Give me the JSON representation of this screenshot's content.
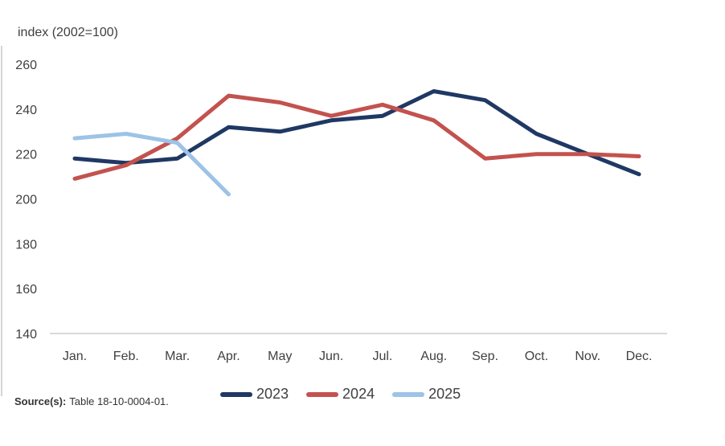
{
  "chart": {
    "source_label": "Source(s):",
    "source_text": "Table 18-10-0004-01.",
    "background": "#ffffff",
    "text_color": "#404040",
    "grid_color": "#d9d9d9"
  },
  "chart_data": {
    "type": "line",
    "title": "index (2002=100)",
    "categories": [
      "Jan.",
      "Feb.",
      "Mar.",
      "Apr.",
      "May",
      "Jun.",
      "Jul.",
      "Aug.",
      "Sep.",
      "Oct.",
      "Nov.",
      "Dec."
    ],
    "series": [
      {
        "name": "2023",
        "color": "#1f3864",
        "values": [
          218,
          216,
          218,
          232,
          230,
          235,
          237,
          248,
          244,
          229,
          220,
          211
        ]
      },
      {
        "name": "2024",
        "color": "#c3524e",
        "values": [
          209,
          215,
          227,
          246,
          243,
          237,
          242,
          235,
          218,
          220,
          220,
          219
        ]
      },
      {
        "name": "2025",
        "color": "#9dc3e6",
        "values": [
          227,
          229,
          225,
          202,
          null,
          null,
          null,
          null,
          null,
          null,
          null,
          null
        ]
      }
    ],
    "ylabel": "index (2002=100)",
    "ylim": [
      140,
      260
    ],
    "yticks": [
      260,
      240,
      220,
      200,
      180,
      160,
      140
    ],
    "ytick_step": 20,
    "grid": "baseline-only",
    "legend_position": "bottom-center",
    "source": "Source(s): Table 18-10-0004-01."
  }
}
